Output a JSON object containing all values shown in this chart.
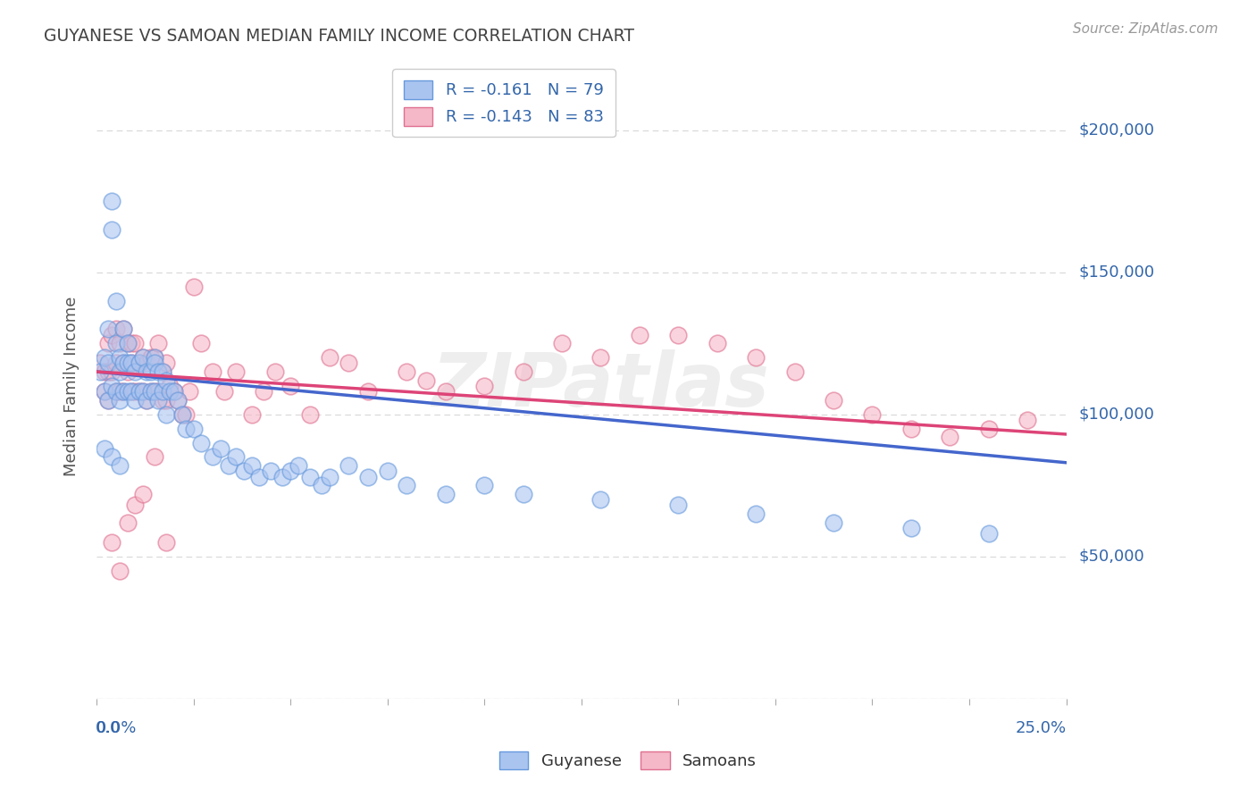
{
  "title": "GUYANESE VS SAMOAN MEDIAN FAMILY INCOME CORRELATION CHART",
  "source": "Source: ZipAtlas.com",
  "ylabel": "Median Family Income",
  "yticks": [
    0,
    50000,
    100000,
    150000,
    200000
  ],
  "ytick_labels": [
    "",
    "$50,000",
    "$100,000",
    "$150,000",
    "$200,000"
  ],
  "xlim": [
    0.0,
    0.25
  ],
  "ylim": [
    0,
    220000
  ],
  "background_color": "#ffffff",
  "grid_color": "#d8d8d8",
  "watermark": "ZIPatlas",
  "legend_r_blue": "-0.161",
  "legend_n_blue": "79",
  "legend_r_pink": "-0.143",
  "legend_n_pink": "83",
  "legend_label_blue": "Guyanese",
  "legend_label_pink": "Samoans",
  "blue_color": "#aac4f0",
  "pink_color": "#f5b8c8",
  "blue_edge": "#6699dd",
  "pink_edge": "#e07090",
  "line_blue": "#4466cc",
  "line_pink": "#dd4477",
  "title_color": "#444444",
  "axis_label_color": "#3366aa",
  "guyanese_x": [
    0.001,
    0.002,
    0.002,
    0.003,
    0.003,
    0.003,
    0.004,
    0.004,
    0.004,
    0.005,
    0.005,
    0.005,
    0.006,
    0.006,
    0.006,
    0.007,
    0.007,
    0.007,
    0.008,
    0.008,
    0.008,
    0.009,
    0.009,
    0.01,
    0.01,
    0.011,
    0.011,
    0.012,
    0.012,
    0.013,
    0.013,
    0.014,
    0.014,
    0.015,
    0.015,
    0.015,
    0.016,
    0.016,
    0.017,
    0.017,
    0.018,
    0.018,
    0.019,
    0.02,
    0.021,
    0.022,
    0.023,
    0.025,
    0.027,
    0.03,
    0.032,
    0.034,
    0.036,
    0.038,
    0.04,
    0.042,
    0.045,
    0.048,
    0.05,
    0.052,
    0.055,
    0.058,
    0.06,
    0.065,
    0.07,
    0.075,
    0.08,
    0.09,
    0.1,
    0.11,
    0.13,
    0.15,
    0.17,
    0.19,
    0.21,
    0.23,
    0.002,
    0.004,
    0.006
  ],
  "guyanese_y": [
    115000,
    120000,
    108000,
    130000,
    118000,
    105000,
    165000,
    175000,
    110000,
    140000,
    125000,
    108000,
    120000,
    115000,
    105000,
    130000,
    118000,
    108000,
    125000,
    118000,
    108000,
    118000,
    108000,
    115000,
    105000,
    118000,
    108000,
    120000,
    108000,
    115000,
    105000,
    115000,
    108000,
    120000,
    118000,
    108000,
    115000,
    105000,
    115000,
    108000,
    112000,
    100000,
    108000,
    108000,
    105000,
    100000,
    95000,
    95000,
    90000,
    85000,
    88000,
    82000,
    85000,
    80000,
    82000,
    78000,
    80000,
    78000,
    80000,
    82000,
    78000,
    75000,
    78000,
    82000,
    78000,
    80000,
    75000,
    72000,
    75000,
    72000,
    70000,
    68000,
    65000,
    62000,
    60000,
    58000,
    88000,
    85000,
    82000
  ],
  "samoan_x": [
    0.001,
    0.002,
    0.002,
    0.003,
    0.003,
    0.003,
    0.004,
    0.004,
    0.005,
    0.005,
    0.005,
    0.006,
    0.006,
    0.007,
    0.007,
    0.007,
    0.008,
    0.008,
    0.009,
    0.009,
    0.009,
    0.01,
    0.01,
    0.011,
    0.011,
    0.012,
    0.012,
    0.013,
    0.013,
    0.014,
    0.014,
    0.015,
    0.015,
    0.016,
    0.016,
    0.017,
    0.017,
    0.018,
    0.018,
    0.019,
    0.02,
    0.021,
    0.022,
    0.023,
    0.024,
    0.025,
    0.027,
    0.03,
    0.033,
    0.036,
    0.04,
    0.043,
    0.046,
    0.05,
    0.055,
    0.06,
    0.065,
    0.07,
    0.08,
    0.085,
    0.09,
    0.1,
    0.11,
    0.12,
    0.13,
    0.14,
    0.15,
    0.16,
    0.17,
    0.18,
    0.19,
    0.2,
    0.21,
    0.22,
    0.23,
    0.24,
    0.004,
    0.006,
    0.008,
    0.01,
    0.012,
    0.015,
    0.018
  ],
  "samoan_y": [
    118000,
    115000,
    108000,
    125000,
    115000,
    105000,
    128000,
    115000,
    130000,
    118000,
    108000,
    125000,
    108000,
    130000,
    118000,
    108000,
    125000,
    115000,
    125000,
    118000,
    108000,
    125000,
    108000,
    118000,
    108000,
    120000,
    108000,
    118000,
    105000,
    120000,
    108000,
    120000,
    108000,
    125000,
    108000,
    115000,
    105000,
    118000,
    105000,
    110000,
    108000,
    105000,
    100000,
    100000,
    108000,
    145000,
    125000,
    115000,
    108000,
    115000,
    100000,
    108000,
    115000,
    110000,
    100000,
    120000,
    118000,
    108000,
    115000,
    112000,
    108000,
    110000,
    115000,
    125000,
    120000,
    128000,
    128000,
    125000,
    120000,
    115000,
    105000,
    100000,
    95000,
    92000,
    95000,
    98000,
    55000,
    45000,
    62000,
    68000,
    72000,
    85000,
    55000
  ]
}
